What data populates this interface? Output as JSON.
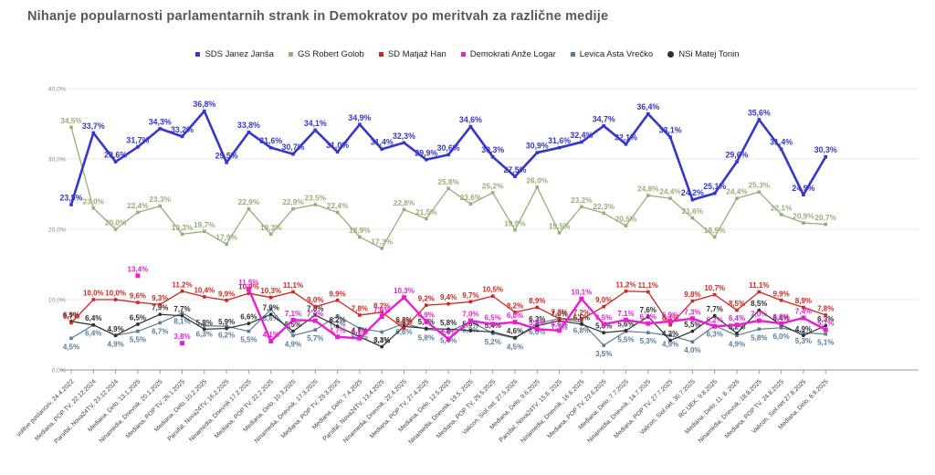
{
  "title": "Nihanje popularnosti parlamentarnih strank in Demokratov po meritvah za različne medije",
  "chart_data": {
    "type": "line",
    "grid": true,
    "legend_position": "top-center",
    "ylim": [
      0,
      43
    ],
    "y_ticks": [
      "0,0%",
      "10,0%",
      "20,0%",
      "30,0%",
      "40,0%"
    ],
    "categories": [
      "volitve poslancev, 24.4.2022",
      "Mediana, POP TV, 22.12.2024",
      "Parsifal, Nova24TV, 23.12.2024",
      "Mediana, Delo, 13.1.2025",
      "Ninamedia, Dnevnik, 20.1.2025",
      "Mediana, POP TV, 26.1.2025",
      "Mediana, Delo, 10.2.2025",
      "Parsifal, Nova24TV, 16.2.2025",
      "Ninamedia, Dnevnik 17.2.2025",
      "Mediana, POP TV, 22.2.2025",
      "Mediana, Delo, 10.3.2025",
      "Ninamedia, Dnevnik, 17.3.2025",
      "Mediana, POP TV, 23.3.2025",
      "Mediana, Delo, 7.4.2025",
      "Parsifal, Nova24TV, 13.4.2025",
      "Ninamedia, Dnevnik, 22.4.2025",
      "Mediana, POP TV, 27.4.2025",
      "Mediana, Delo, 12.5.2025",
      "Ninamedia, Dnevnik, 19.5. 2025",
      "Mediana, POP TV, 25.5.2025",
      "Valicon, Siol.net, 27.5.2025",
      "Mediana, Delo, 9.6.2025",
      "Parsifal, Nova24TV, 15.6. 2025",
      "Ninamedia, Dnevnik, 16.6.2025",
      "Mediana, POP TV, 22.6.2025",
      "Mediana, Delo, 7.7.2025",
      "Ninamedia, Dnevnik, 14.7.2025",
      "Mediana, POP TV, 27.7.2025",
      "Valicon, Siol.net, 30.7.2025",
      "RC IJEK, 9.8.2025",
      "Mediana, Delo, 11. 8. 2025",
      "Ninamedia, Dnevnik, 18.8.2025",
      "Mediana, POP TV, 24.8.2025",
      "Valicon, Siol.net 27.8.2025",
      "Mediana, Delo, 8.9.2025"
    ],
    "series": [
      {
        "name": "SDS Janez Janša",
        "color": "#3437c9",
        "marker": "square",
        "line_width": 2.6,
        "label_font": 8.8,
        "label_position": "above",
        "values": [
          23.5,
          33.7,
          29.6,
          31.7,
          34.3,
          33.2,
          36.8,
          29.5,
          33.8,
          31.6,
          30.7,
          34.1,
          31.0,
          34.9,
          31.4,
          32.3,
          29.9,
          30.6,
          34.6,
          30.3,
          27.5,
          30.9,
          31.6,
          32.4,
          34.7,
          32.1,
          36.4,
          33.1,
          24.2,
          25.1,
          29.6,
          35.6,
          31.4,
          24.9,
          30.3
        ]
      },
      {
        "name": "GS Robert Golob",
        "color": "#98ae78",
        "marker": "square",
        "line_width": 1.3,
        "label_font": 8.3,
        "label_position": "above",
        "values": [
          34.5,
          23.0,
          20.0,
          22.4,
          23.3,
          19.3,
          19.7,
          17.9,
          22.9,
          19.3,
          22.9,
          23.5,
          22.4,
          18.9,
          17.3,
          22.8,
          21.5,
          25.8,
          23.6,
          25.2,
          19.9,
          26.0,
          19.5,
          23.2,
          22.3,
          20.5,
          24.8,
          24.4,
          21.6,
          18.9,
          24.4,
          25.3,
          22.1,
          20.9,
          20.7
        ]
      },
      {
        "name": "SD Matjaž Han",
        "color": "#cf2721",
        "marker": "square",
        "line_width": 1.3,
        "label_font": 8,
        "label_position": "above",
        "values": [
          6.7,
          10.0,
          10.0,
          9.6,
          9.3,
          11.2,
          10.4,
          9.9,
          10.9,
          10.3,
          11.1,
          9.0,
          9.9,
          7.8,
          8.2,
          5.9,
          9.2,
          9.4,
          9.7,
          10.5,
          8.2,
          8.9,
          7.3,
          7.2,
          9.0,
          11.2,
          11.1,
          6.4,
          9.8,
          10.7,
          8.5,
          11.1,
          9.9,
          8.9,
          7.8
        ]
      },
      {
        "name": "Demokrati Anže Logar",
        "color": "#e81fd1",
        "marker": "square-large",
        "line_width": 2.4,
        "label_font": 8,
        "label_position": "above",
        "values": [
          null,
          null,
          null,
          13.4,
          null,
          3.8,
          null,
          null,
          11.5,
          4.1,
          7.1,
          7.0,
          4.7,
          4.5,
          7.6,
          10.3,
          6.9,
          4.4,
          7.0,
          6.5,
          6.8,
          5.8,
          5.6,
          10.1,
          6.5,
          7.1,
          6.6,
          6.9,
          7.3,
          6.2,
          6.4,
          7.0,
          6.6,
          7.4,
          5.7
        ]
      },
      {
        "name": "Levica  Asta Vrečko",
        "color": "#5b7b97",
        "marker": "square",
        "line_width": 1.2,
        "label_font": 8,
        "label_position": "below",
        "values": [
          4.5,
          6.4,
          4.9,
          5.5,
          6.7,
          8.1,
          6.3,
          6.2,
          5.5,
          8.6,
          4.9,
          5.7,
          7.7,
          5.9,
          5.4,
          6.6,
          5.8,
          5.4,
          6.9,
          5.2,
          4.5,
          6.6,
          7.3,
          6.8,
          3.5,
          5.5,
          5.3,
          4.9,
          4.0,
          6.3,
          4.9,
          5.8,
          6.0,
          5.3,
          5.1
        ]
      },
      {
        "name": "NSi Matej Tonin",
        "color": "#2e2e2e",
        "marker": "circle",
        "line_width": 1.2,
        "label_font": 8,
        "label_position": "above",
        "values": [
          6.9,
          6.4,
          4.9,
          6.5,
          7.9,
          7.7,
          5.8,
          5.9,
          6.6,
          7.9,
          5.5,
          7.8,
          6.2,
          4.7,
          3.3,
          6.2,
          5.9,
          5.8,
          5.6,
          5.4,
          4.6,
          6.3,
          7.0,
          6.5,
          5.3,
          5.6,
          7.6,
          4.2,
          5.5,
          7.7,
          5.2,
          8.5,
          6.4,
          4.9,
          6.3
        ]
      }
    ]
  }
}
